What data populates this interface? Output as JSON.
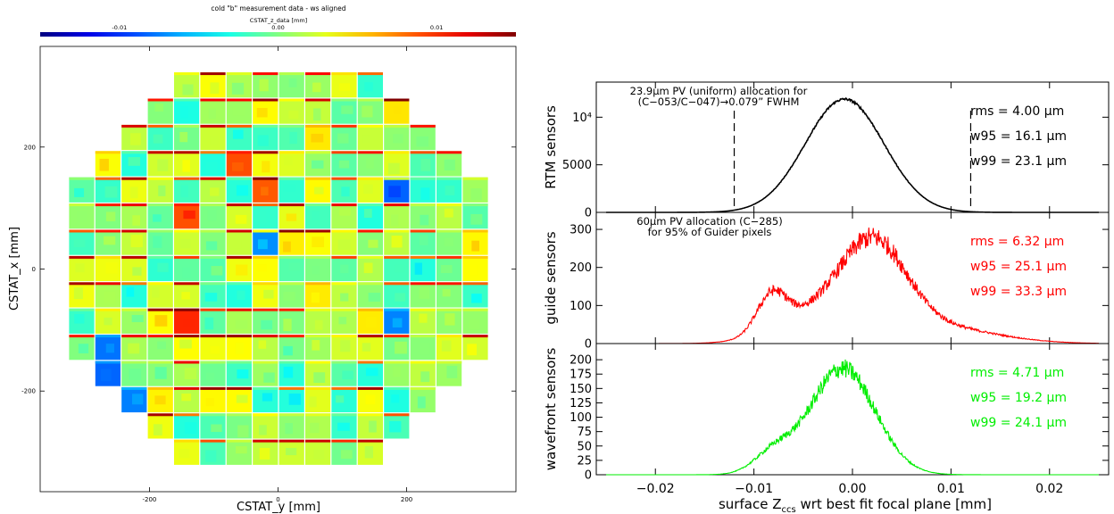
{
  "chart_data": [
    {
      "type": "heatmap",
      "title": "cold \"b\" measurement data - ws aligned",
      "colorbar": {
        "label": "CSTAT_z_data [mm]",
        "range": [
          -0.015,
          0.015
        ],
        "ticks": [
          {
            "value": -0.01,
            "label": "-0.01"
          },
          {
            "value": 0.0,
            "label": "0.00"
          },
          {
            "value": 0.01,
            "label": "0.01"
          }
        ],
        "colormap": "jet"
      },
      "xlabel": "CSTAT_y [mm]",
      "ylabel": "CSTAT_x [mm]",
      "xlim": [
        -370,
        370
      ],
      "ylim": [
        -365,
        365
      ],
      "xticks": [
        {
          "value": -200,
          "label": "-200"
        },
        {
          "value": 0,
          "label": "0"
        },
        {
          "value": 200,
          "label": "200"
        }
      ],
      "yticks": [
        {
          "value": 200,
          "label": "200"
        },
        {
          "value": 0,
          "label": "0"
        },
        {
          "value": -200,
          "label": "-200"
        }
      ],
      "grid": false
    },
    {
      "type": "line",
      "description": "three stacked histogram panels sharing the x axis",
      "xlabel_main": "surface Z",
      "xlabel_sub": "ccs",
      "xlabel_rest": " wrt best fit focal plane [mm]",
      "xlim": [
        -0.026,
        0.026
      ],
      "xticks": [
        {
          "value": -0.02,
          "label": "−0.02"
        },
        {
          "value": -0.01,
          "label": "−0.01"
        },
        {
          "value": 0.0,
          "label": "0.00"
        },
        {
          "value": 0.01,
          "label": "0.01"
        },
        {
          "value": 0.02,
          "label": "0.02"
        }
      ],
      "panels": [
        {
          "ylabel": "RTM sensors",
          "color": "#000000",
          "ylim": [
            0,
            13500
          ],
          "yticks": [
            {
              "value": 0,
              "label": "0"
            },
            {
              "value": 5000,
              "label": "5000"
            }
          ],
          "ytick_top_label": "10⁴",
          "ytick_top_value": 10000,
          "annotation_lines": [
            "23.9μm PV (uniform) allocation for",
            "(C−053/C−047)→0.079” FWHM"
          ],
          "dashed_lines_x": [
            -0.012,
            0.012
          ],
          "stats": [
            "rms = 4.00 μm",
            "w95 = 16.1 μm",
            "w99 = 23.1 μm"
          ],
          "components": [
            {
              "mu": -0.0008,
              "sigma": 0.004,
              "amp": 11900
            }
          ],
          "noise": 0.01
        },
        {
          "ylabel": "guide sensors",
          "color": "#ff0000",
          "ylim": [
            0,
            340
          ],
          "yticks": [
            {
              "value": 0,
              "label": "0"
            },
            {
              "value": 100,
              "label": "100"
            },
            {
              "value": 200,
              "label": "200"
            },
            {
              "value": 300,
              "label": "300"
            }
          ],
          "annotation_lines": [
            "60μm PV allocation (C−285)",
            "for 95% of Guider pixels"
          ],
          "stats": [
            "rms = 6.32 μm",
            "w95 = 25.1 μm",
            "w99 = 33.3 μm"
          ],
          "components": [
            {
              "mu": -0.0082,
              "sigma": 0.0015,
              "amp": 95
            },
            {
              "mu": -0.004,
              "sigma": 0.004,
              "amp": 70
            },
            {
              "mu": 0.0022,
              "sigma": 0.0033,
              "amp": 230
            },
            {
              "mu": 0.008,
              "sigma": 0.006,
              "amp": 45
            }
          ],
          "noise": 0.1
        },
        {
          "ylabel": "wavefront sensors",
          "color": "#00ee00",
          "ylim": [
            0,
            225
          ],
          "yticks": [
            {
              "value": 0,
              "label": "0"
            },
            {
              "value": 25,
              "label": "25"
            },
            {
              "value": 50,
              "label": "50"
            },
            {
              "value": 75,
              "label": "75"
            },
            {
              "value": 100,
              "label": "100"
            },
            {
              "value": 125,
              "label": "125"
            },
            {
              "value": 150,
              "label": "150"
            },
            {
              "value": 175,
              "label": "175"
            },
            {
              "value": 200,
              "label": "200"
            }
          ],
          "stats": [
            "rms = 4.71 μm",
            "w95 = 19.2 μm",
            "w99 = 24.1 μm"
          ],
          "components": [
            {
              "mu": -0.001,
              "sigma": 0.0033,
              "amp": 185
            },
            {
              "mu": -0.008,
              "sigma": 0.002,
              "amp": 35
            }
          ],
          "noise": 0.09
        }
      ]
    }
  ]
}
